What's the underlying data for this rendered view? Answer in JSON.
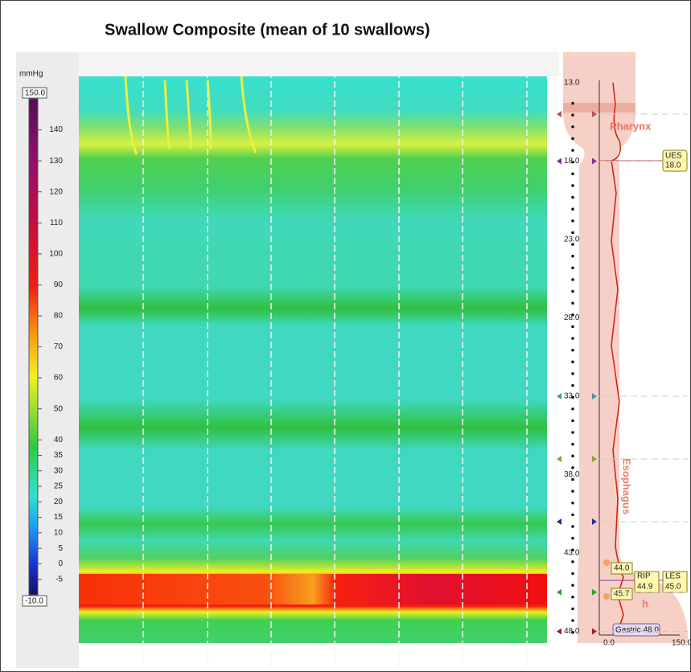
{
  "title": "Swallow Composite (mean of 10 swallows)",
  "colorbar": {
    "unit": "mmHg",
    "max": {
      "value": 150,
      "label": "150.0"
    },
    "min": {
      "value": -10,
      "label": "-10.0"
    },
    "ticks": [
      140,
      130,
      120,
      110,
      100,
      90,
      80,
      70,
      60,
      50,
      40,
      35,
      30,
      25,
      20,
      15,
      10,
      5,
      0,
      -5
    ]
  },
  "depth_axis": [
    {
      "value": 13,
      "label": "13.0"
    },
    {
      "value": 18,
      "label": "18.0"
    },
    {
      "value": 23,
      "label": "23.0"
    },
    {
      "value": 28,
      "label": "28.0"
    },
    {
      "value": 33,
      "label": "33.0"
    },
    {
      "value": 38,
      "label": "38.0"
    },
    {
      "value": 43,
      "label": "43.0"
    },
    {
      "value": 48,
      "label": "48.0"
    }
  ],
  "regions": {
    "pharynx": "Pharynx",
    "esophagus": "Esophagus",
    "stomach": "h"
  },
  "landmarks": {
    "ues": {
      "name": "UES",
      "value": "18.0"
    },
    "les_top": "44.0",
    "rip": {
      "name": "RIP",
      "value": "44.9"
    },
    "les": {
      "name": "LES",
      "value": "45.0"
    },
    "les_bottom": "45.7",
    "gastric": "Gastric 48.0"
  },
  "profile_axis": {
    "min": "0.0",
    "max": "150.0"
  }
}
